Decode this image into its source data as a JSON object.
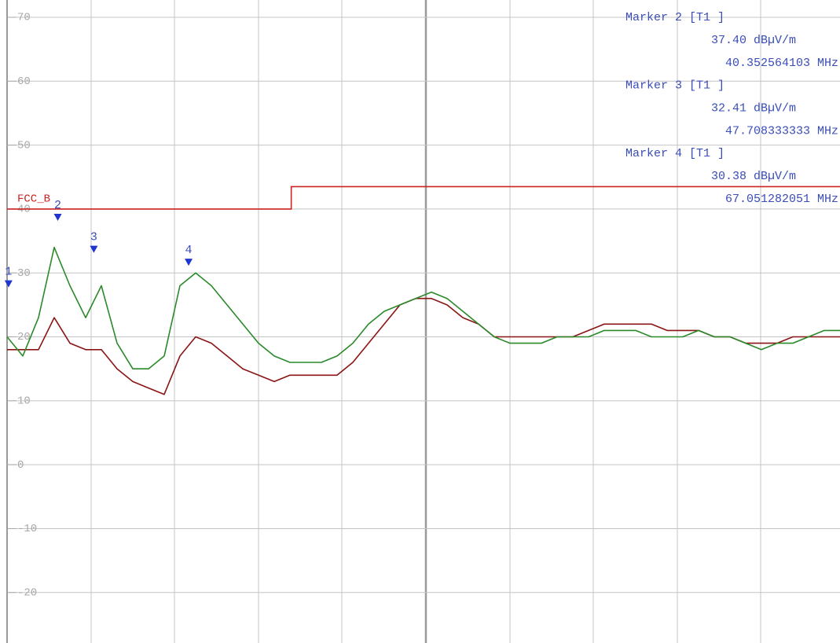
{
  "chart_data": {
    "type": "line",
    "xlim": [
      30,
      200
    ],
    "ylim": [
      -27.9,
      72.7
    ],
    "yticks": [
      -20,
      -10,
      0,
      10,
      20,
      30,
      40,
      50,
      60,
      70
    ],
    "grid": true,
    "series": [
      {
        "color": "#8b1414",
        "values": [
          18,
          18,
          18,
          23,
          19,
          18,
          18,
          15,
          13,
          12,
          11,
          17,
          20,
          19,
          17,
          15,
          14,
          13,
          14,
          14,
          14,
          14,
          16,
          19,
          22,
          25,
          26,
          26,
          25,
          23,
          22,
          20,
          20,
          20,
          20,
          20,
          20,
          21,
          22,
          22,
          22,
          22,
          21,
          21,
          21,
          20,
          20,
          19,
          19,
          19,
          20,
          20,
          20,
          20
        ]
      },
      {
        "color": "#2a8a2a",
        "values": [
          20,
          17,
          23,
          34,
          28,
          23,
          28,
          19,
          15,
          15,
          17,
          28,
          30,
          28,
          25,
          22,
          19,
          17,
          16,
          16,
          16,
          17,
          19,
          22,
          24,
          25,
          26,
          27,
          26,
          24,
          22,
          20,
          19,
          19,
          19,
          20,
          20,
          20,
          21,
          21,
          21,
          20,
          20,
          20,
          21,
          20,
          20,
          19,
          18,
          19,
          19,
          20,
          21,
          21
        ]
      }
    ],
    "limit_line": {
      "name": "FCC_B",
      "color": "#cc2222",
      "x": [
        30,
        88,
        88,
        200
      ],
      "values": [
        40,
        40,
        43.5,
        43.5
      ]
    },
    "marker_color": "#1f35d0",
    "markers": [
      {
        "label": "1",
        "x": 30.3,
        "value": 27
      },
      {
        "label": "2",
        "x": 40.352564103,
        "value": 37.4,
        "title": "Marker 2 [T1 ]",
        "value_label": "37.40 dBµV/m",
        "x_label": "40.352564103 MHz"
      },
      {
        "label": "3",
        "x": 47.708333333,
        "value": 32.41,
        "title": "Marker 3 [T1 ]",
        "value_label": "32.41 dBµV/m",
        "x_label": "47.708333333 MHz"
      },
      {
        "label": "4",
        "x": 67.051282051,
        "value": 30.38,
        "title": "Marker 4 [T1 ]",
        "value_label": "30.38 dBµV/m",
        "x_label": "67.051282051 MHz"
      }
    ]
  }
}
